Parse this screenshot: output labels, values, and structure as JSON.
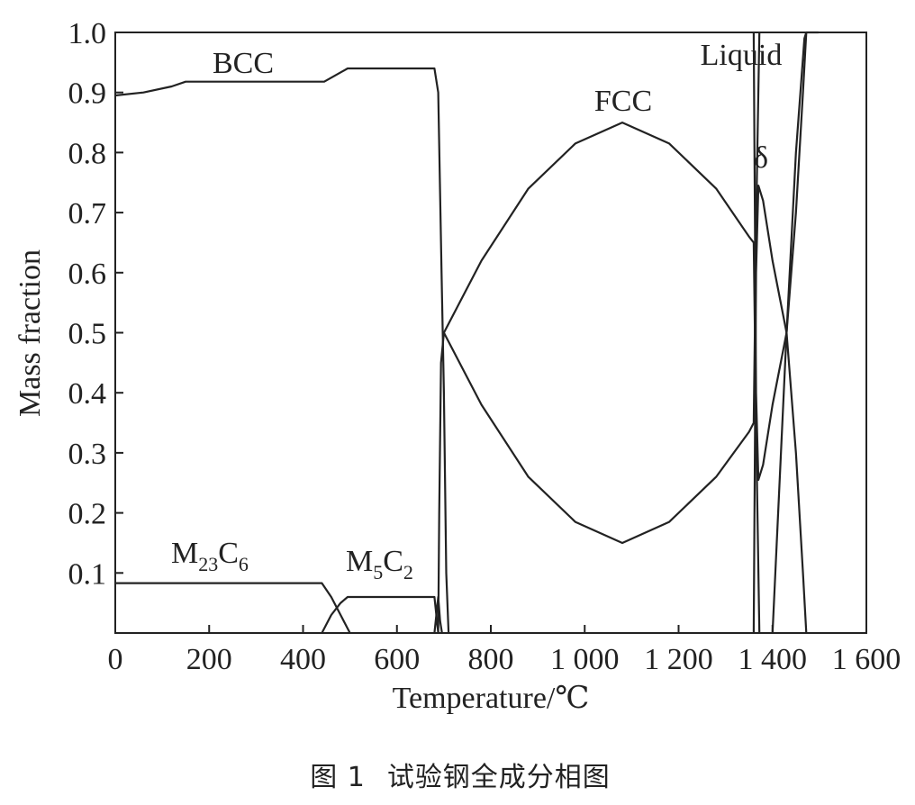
{
  "chart_data": {
    "type": "line",
    "xlabel": "Temperature/℃",
    "ylabel": "Mass fraction",
    "xlim": [
      0,
      1600
    ],
    "ylim": [
      0,
      1.0
    ],
    "x_ticks": [
      0,
      200,
      400,
      600,
      800,
      1000,
      1200,
      1400,
      1600
    ],
    "x_tick_labels": [
      "0",
      "200",
      "400",
      "600",
      "800",
      "1 000",
      "1 200",
      "1 400",
      "1 600"
    ],
    "y_ticks": [
      0.1,
      0.2,
      0.3,
      0.4,
      0.5,
      0.6,
      0.7,
      0.8,
      0.9,
      1.0
    ],
    "y_tick_labels": [
      "0.1",
      "0.2",
      "0.3",
      "0.4",
      "0.5",
      "0.6",
      "0.7",
      "0.8",
      "0.9",
      "1.0"
    ],
    "grid": false,
    "series": [
      {
        "name": "BCC",
        "points": [
          [
            0,
            0.895
          ],
          [
            60,
            0.9
          ],
          [
            120,
            0.91
          ],
          [
            150,
            0.918
          ],
          [
            200,
            0.918
          ],
          [
            300,
            0.918
          ],
          [
            400,
            0.918
          ],
          [
            445,
            0.918
          ],
          [
            495,
            0.94
          ],
          [
            560,
            0.94
          ],
          [
            680,
            0.94
          ],
          [
            688,
            0.9
          ],
          [
            695,
            0.6
          ],
          [
            700,
            0.4
          ],
          [
            705,
            0.1
          ],
          [
            710,
            0.0
          ]
        ]
      },
      {
        "name": "FCC",
        "points": [
          [
            688,
            0.0
          ],
          [
            690,
            0.2
          ],
          [
            694,
            0.45
          ],
          [
            700,
            0.5
          ],
          [
            780,
            0.62
          ],
          [
            880,
            0.74
          ],
          [
            980,
            0.815
          ],
          [
            1080,
            0.85
          ],
          [
            1180,
            0.815
          ],
          [
            1280,
            0.74
          ],
          [
            1350,
            0.66
          ],
          [
            1360,
            0.65
          ],
          [
            1366,
            0.3
          ],
          [
            1372,
            0.0
          ]
        ]
      },
      {
        "name": "FCC",
        "points": [
          [
            700,
            0.5
          ],
          [
            780,
            0.38
          ],
          [
            880,
            0.26
          ],
          [
            980,
            0.185
          ],
          [
            1080,
            0.15
          ],
          [
            1180,
            0.185
          ],
          [
            1280,
            0.26
          ],
          [
            1350,
            0.335
          ],
          [
            1360,
            0.35
          ],
          [
            1366,
            0.72
          ],
          [
            1372,
            1.0
          ]
        ]
      },
      {
        "name": "δ",
        "points": [
          [
            1360,
            0.0
          ],
          [
            1365,
            0.6
          ],
          [
            1370,
            0.745
          ],
          [
            1380,
            0.72
          ],
          [
            1400,
            0.62
          ],
          [
            1430,
            0.5
          ],
          [
            1450,
            0.3
          ],
          [
            1465,
            0.1
          ],
          [
            1472,
            0.0
          ]
        ]
      },
      {
        "name": "δ",
        "points": [
          [
            1360,
            1.0
          ],
          [
            1365,
            0.4
          ],
          [
            1370,
            0.255
          ],
          [
            1380,
            0.28
          ],
          [
            1400,
            0.38
          ],
          [
            1430,
            0.5
          ],
          [
            1450,
            0.7
          ],
          [
            1465,
            0.9
          ],
          [
            1472,
            1.0
          ]
        ]
      },
      {
        "name": "Liquid",
        "points": [
          [
            1400,
            0.0
          ],
          [
            1430,
            0.5
          ],
          [
            1450,
            0.8
          ],
          [
            1468,
            0.99
          ],
          [
            1472,
            1.0
          ],
          [
            1498,
            1.0
          ]
        ]
      },
      {
        "name": "M23C6",
        "points": [
          [
            0,
            0.083
          ],
          [
            100,
            0.083
          ],
          [
            200,
            0.083
          ],
          [
            300,
            0.083
          ],
          [
            440,
            0.083
          ],
          [
            460,
            0.06
          ],
          [
            480,
            0.03
          ],
          [
            500,
            0.0
          ]
        ]
      },
      {
        "name": "M5C2",
        "points": [
          [
            440,
            0.0
          ],
          [
            460,
            0.03
          ],
          [
            480,
            0.05
          ],
          [
            495,
            0.06
          ],
          [
            600,
            0.06
          ],
          [
            680,
            0.06
          ],
          [
            684,
            0.03
          ],
          [
            688,
            0.0
          ]
        ]
      },
      {
        "name": "M5C2",
        "points": [
          [
            680,
            0.0
          ],
          [
            684,
            0.03
          ],
          [
            688,
            0.06
          ],
          [
            692,
            0.02
          ],
          [
            696,
            0.0
          ]
        ]
      }
    ],
    "annotations": [
      {
        "text": "BCC",
        "x": 250,
        "y": 0.945
      },
      {
        "text": "FCC",
        "x": 1080,
        "y": 0.875
      },
      {
        "text": "δ",
        "x": 1370,
        "y": 0.775
      },
      {
        "text": "Liquid",
        "x": 1395,
        "y": 0.935
      }
    ]
  },
  "labels": {
    "bcc": "BCC",
    "fcc": "FCC",
    "delta": "δ",
    "liquid": "Liquid",
    "m23c6": {
      "main": "M",
      "sub1": "23",
      "main2": "C",
      "sub2": "6"
    },
    "m5c2": {
      "main": "M",
      "sub1": "5",
      "main2": "C",
      "sub2": "2"
    }
  },
  "caption": {
    "figure_number": "图 1",
    "text": "试验钢全成分相图"
  }
}
